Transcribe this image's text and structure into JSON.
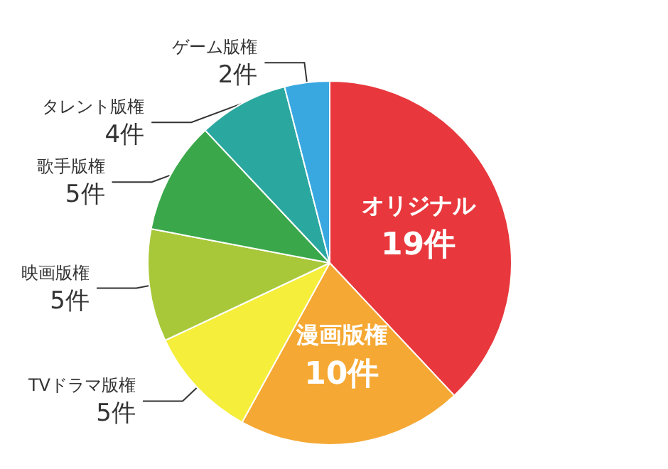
{
  "chart_data": {
    "type": "pie",
    "categories": [
      "オリジナル",
      "漫画版権",
      "TVドラマ版権",
      "映画版権",
      "歌手版権",
      "タレント版権",
      "ゲーム版権"
    ],
    "values": [
      19,
      10,
      5,
      5,
      5,
      4,
      2
    ],
    "value_labels": [
      "19件",
      "10件",
      "5件",
      "5件",
      "5件",
      "4件",
      "2件"
    ],
    "colors": [
      "#e8383d",
      "#f5a833",
      "#f5ee3a",
      "#a8c83a",
      "#3aa84a",
      "#2aa8a0",
      "#3aa8e0"
    ],
    "legend": false
  }
}
